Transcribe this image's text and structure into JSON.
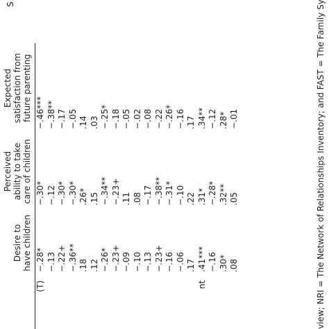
{
  "table": {
    "headers": [
      "Desire to have children",
      "Perceived ability to take care of children",
      "Expected satisfaction from future parenting"
    ],
    "row_labels": [
      "(T)",
      "",
      "",
      "",
      "",
      "",
      "",
      "",
      "",
      "",
      "",
      "",
      "",
      "",
      "",
      "nt",
      "",
      "",
      ""
    ],
    "rows": [
      [
        "−.28*",
        "−.30*",
        "−.46***"
      ],
      [
        "−.13",
        "−.12",
        "−.38**"
      ],
      [
        "−.22+",
        "−.30*",
        "−.17"
      ],
      [
        "−.36**",
        "−.30*",
        "−.05"
      ],
      [
        ".18",
        ".26*",
        ".14"
      ],
      [
        ".12",
        ".15",
        ".03"
      ],
      [
        "−.26*",
        "−.34**",
        "−.25*"
      ],
      [
        "−.23+",
        "−.23+",
        "−.18"
      ],
      [
        "−.09",
        ".11",
        "−.05"
      ],
      [
        "−.10",
        ".08",
        "−.02"
      ],
      [
        "−.13",
        "−.17",
        "−.08"
      ],
      [
        "−.23+",
        "−.38**",
        "−.22"
      ],
      [
        "−.16",
        "−.31*",
        "−.26*"
      ],
      [
        "−.06",
        "−.10",
        "−.16"
      ],
      [
        ".17",
        ".22",
        ".17"
      ],
      [
        ".41***",
        ".31*",
        ".34**"
      ],
      [
        "−.16",
        "−.28*",
        "−.12"
      ],
      [
        ".30*",
        ".32**",
        ".28*"
      ],
      [
        ".08",
        ".05",
        "−.01"
      ]
    ]
  },
  "footnote": "view; NRI = The Network of Relationships Inventory; and FAST = The Family System Test.",
  "side_text": "S"
}
